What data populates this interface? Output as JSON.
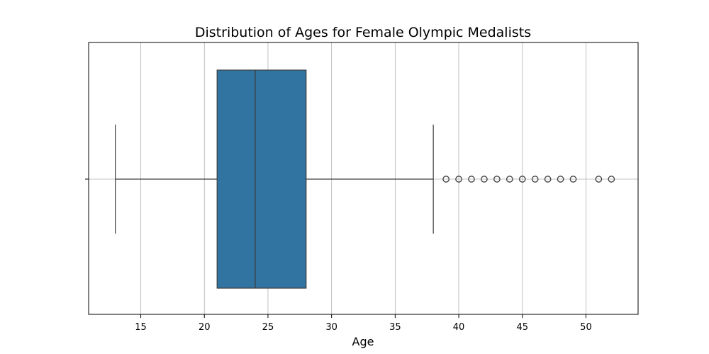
{
  "chart_data": {
    "type": "box",
    "title": "Distribution of Ages for Female Olympic Medalists",
    "xlabel": "Age",
    "ylabel": "",
    "orientation": "horizontal",
    "xlim": [
      10.9,
      54.1
    ],
    "xticks": [
      15,
      20,
      25,
      30,
      35,
      40,
      45,
      50
    ],
    "grid": true,
    "box": {
      "min": 13,
      "q1": 21,
      "median": 24,
      "q3": 28,
      "max": 38,
      "color": "#3274a1",
      "edge_color": "#3d3d3d"
    },
    "outliers": [
      39,
      40,
      41,
      42,
      43,
      44,
      45,
      46,
      47,
      48,
      49,
      51,
      52
    ]
  }
}
